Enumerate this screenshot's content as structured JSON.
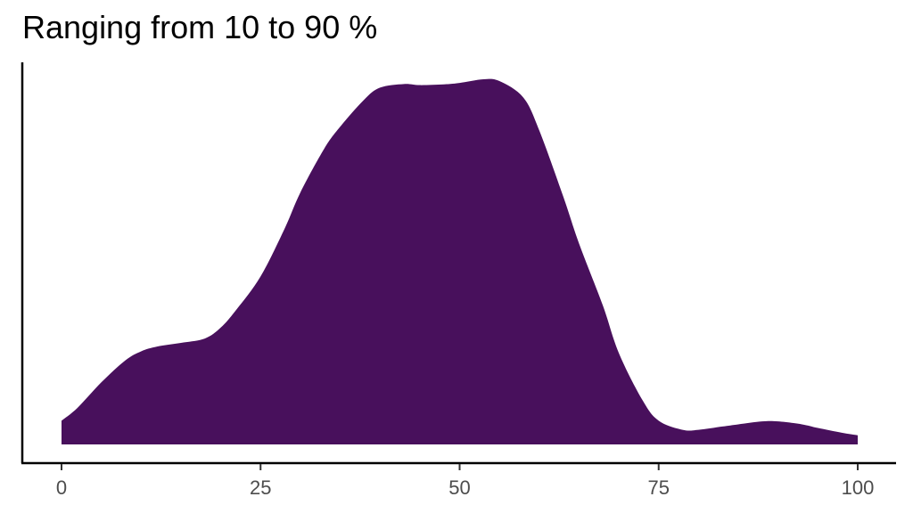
{
  "chart_data": {
    "type": "area",
    "title": "Ranging from 10 to 90 %",
    "xlabel": "",
    "ylabel": "",
    "xlim": [
      0,
      100
    ],
    "ylim": [
      0,
      1
    ],
    "grid": false,
    "x_ticks": [
      0,
      25,
      50,
      75,
      100
    ],
    "x_tick_labels": [
      "0",
      "25",
      "50",
      "75",
      "100"
    ],
    "fill_color": "#48105C",
    "series": [
      {
        "x": [
          0,
          2,
          5,
          8,
          10,
          12,
          15,
          18,
          20,
          22,
          25,
          28,
          30,
          33,
          35,
          38,
          40,
          43,
          45,
          48,
          50,
          53,
          55,
          58,
          60,
          63,
          65,
          68,
          70,
          73,
          75,
          78,
          80,
          83,
          85,
          88,
          90,
          93,
          95,
          98,
          100
        ],
        "values": [
          0.065,
          0.1,
          0.17,
          0.23,
          0.255,
          0.268,
          0.278,
          0.29,
          0.32,
          0.37,
          0.46,
          0.59,
          0.69,
          0.81,
          0.87,
          0.944,
          0.977,
          0.987,
          0.984,
          0.986,
          0.99,
          1.0,
          0.995,
          0.95,
          0.86,
          0.68,
          0.55,
          0.38,
          0.25,
          0.12,
          0.065,
          0.04,
          0.04,
          0.049,
          0.055,
          0.063,
          0.063,
          0.055,
          0.045,
          0.032,
          0.025
        ]
      }
    ]
  }
}
